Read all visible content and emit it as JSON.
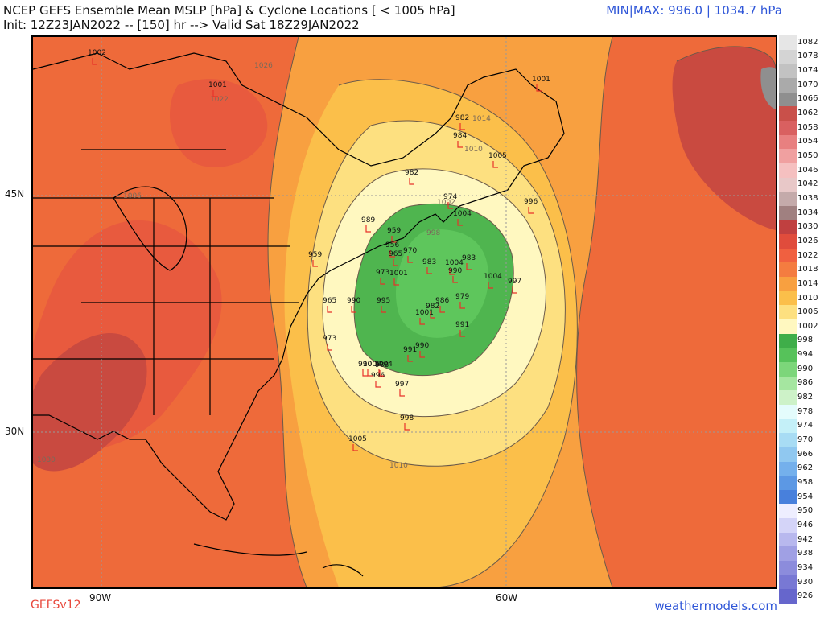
{
  "header": {
    "title": "NCEP GEFS Ensemble Mean MSLP [hPa] & Cyclone Locations [ < 1005 hPa]",
    "subtitle": "Init: 12Z23JAN2022 -- [150] hr --> Valid Sat 18Z29JAN2022",
    "minmax": "MIN|MAX: 996.0 | 1034.7 hPa"
  },
  "axes": {
    "lat_labels": [
      "45N",
      "30N"
    ],
    "lon_labels": [
      "90W",
      "60W"
    ]
  },
  "footer": {
    "model": "GEFSv12",
    "site": "weathermodels.com"
  },
  "colorbar": {
    "levels": [
      "1082",
      "1078",
      "1074",
      "1070",
      "1066",
      "1062",
      "1058",
      "1054",
      "1050",
      "1046",
      "1042",
      "1038",
      "1034",
      "1030",
      "1026",
      "1022",
      "1018",
      "1014",
      "1010",
      "1006",
      "1002",
      "998",
      "994",
      "990",
      "986",
      "982",
      "978",
      "974",
      "970",
      "966",
      "962",
      "958",
      "954",
      "950",
      "946",
      "942",
      "938",
      "934",
      "930",
      "926"
    ],
    "colors": [
      "#e6e6e6",
      "#d4d4d4",
      "#c2c2c2",
      "#aaaaaa",
      "#8f8f8f",
      "#c9504a",
      "#d96060",
      "#e88080",
      "#f0a0a0",
      "#f5c0c0",
      "#e8c8c8",
      "#c4aaaa",
      "#a08080",
      "#c04040",
      "#e04c3c",
      "#f06040",
      "#f47c40",
      "#f8a040",
      "#fbbf4a",
      "#fde080",
      "#fff8c0",
      "#3fae49",
      "#56c25a",
      "#7cd67a",
      "#a5e6a0",
      "#cdf2c8",
      "#e4fcfc",
      "#c4f0f8",
      "#a8dcf4",
      "#90c8f0",
      "#74b0ec",
      "#5c98e4",
      "#4880dc",
      "#eeeeff",
      "#d4d4f8",
      "#b8b8ee",
      "#a0a0e4",
      "#8c8cdc",
      "#7878d4",
      "#6666cc"
    ]
  },
  "isobar_labels": [
    "1014",
    "1010",
    "1006",
    "1030",
    "1026",
    "1022",
    "998",
    "1002",
    "1010"
  ],
  "cyclones": [
    {
      "label": "1002"
    },
    {
      "label": "1001"
    },
    {
      "label": "1001"
    },
    {
      "label": "982"
    },
    {
      "label": "984"
    },
    {
      "label": "1005"
    },
    {
      "label": "982"
    },
    {
      "label": "974"
    },
    {
      "label": "1004"
    },
    {
      "label": "996"
    },
    {
      "label": "989"
    },
    {
      "label": "959"
    },
    {
      "label": "956"
    },
    {
      "label": "970"
    },
    {
      "label": "965"
    },
    {
      "label": "959"
    },
    {
      "label": "983"
    },
    {
      "label": "1004"
    },
    {
      "label": "983"
    },
    {
      "label": "990"
    },
    {
      "label": "1004"
    },
    {
      "label": "973"
    },
    {
      "label": "1001"
    },
    {
      "label": "997"
    },
    {
      "label": "995"
    },
    {
      "label": "965"
    },
    {
      "label": "990"
    },
    {
      "label": "979"
    },
    {
      "label": "986"
    },
    {
      "label": "982"
    },
    {
      "label": "1001"
    },
    {
      "label": "973"
    },
    {
      "label": "991"
    },
    {
      "label": "990"
    },
    {
      "label": "991"
    },
    {
      "label": "990"
    },
    {
      "label": "1004"
    },
    {
      "label": "1000"
    },
    {
      "label": "988"
    },
    {
      "label": "996"
    },
    {
      "label": "997"
    },
    {
      "label": "998"
    },
    {
      "label": "1005"
    }
  ]
}
